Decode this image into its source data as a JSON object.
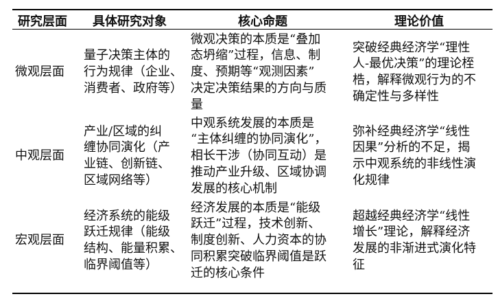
{
  "headers": [
    "研究层面",
    "具体研究对象",
    "核心命题",
    "理论价值"
  ],
  "rows": [
    {
      "level": "微观层面",
      "object": [
        "量子决策主体的",
        "行为规律（企业、",
        "消费者、政府等）"
      ],
      "proposition": [
        "微观决策的本质是“叠加",
        "态坍缩”过程，信息、制",
        "度、预期等“观测因素”",
        "决定决策结果的方向与质",
        "量"
      ],
      "value": [
        "突破经典经济学“理性",
        "人-最优决策”的理论桎",
        "梏，解释微观行为的不",
        "确定性与多样性"
      ]
    },
    {
      "level": "中观层面",
      "object": [
        "产业/区域的纠",
        "缠协同演化（产",
        "业链、创新链、",
        "区域网络等）"
      ],
      "proposition": [
        "中观系统发展的本质是",
        "“主体纠缠的协同演化”，",
        "相长干涉（协同互动）是",
        "推动产业升级、区域协调",
        "发展的核心机制"
      ],
      "value": [
        "弥补经典经济学“线性",
        "因果”分析的不足，揭",
        "示中观系统的非线性演",
        "化规律"
      ]
    },
    {
      "level": "宏观层面",
      "object": [
        "经济系统的能级",
        "跃迁规律（能级",
        "结构、能量积累、",
        "临界阈值等）"
      ],
      "proposition": [
        "经济发展的本质是“能级",
        "跃迁”过程，技术创新、",
        "制度创新、人力资本的协",
        "同积累突破临界阈值是跃",
        "迁的核心条件"
      ],
      "value": [
        "超越经典经济学“线性",
        "增长”理论，解释经济",
        "发展的非渐进式演化特",
        "征"
      ]
    }
  ]
}
